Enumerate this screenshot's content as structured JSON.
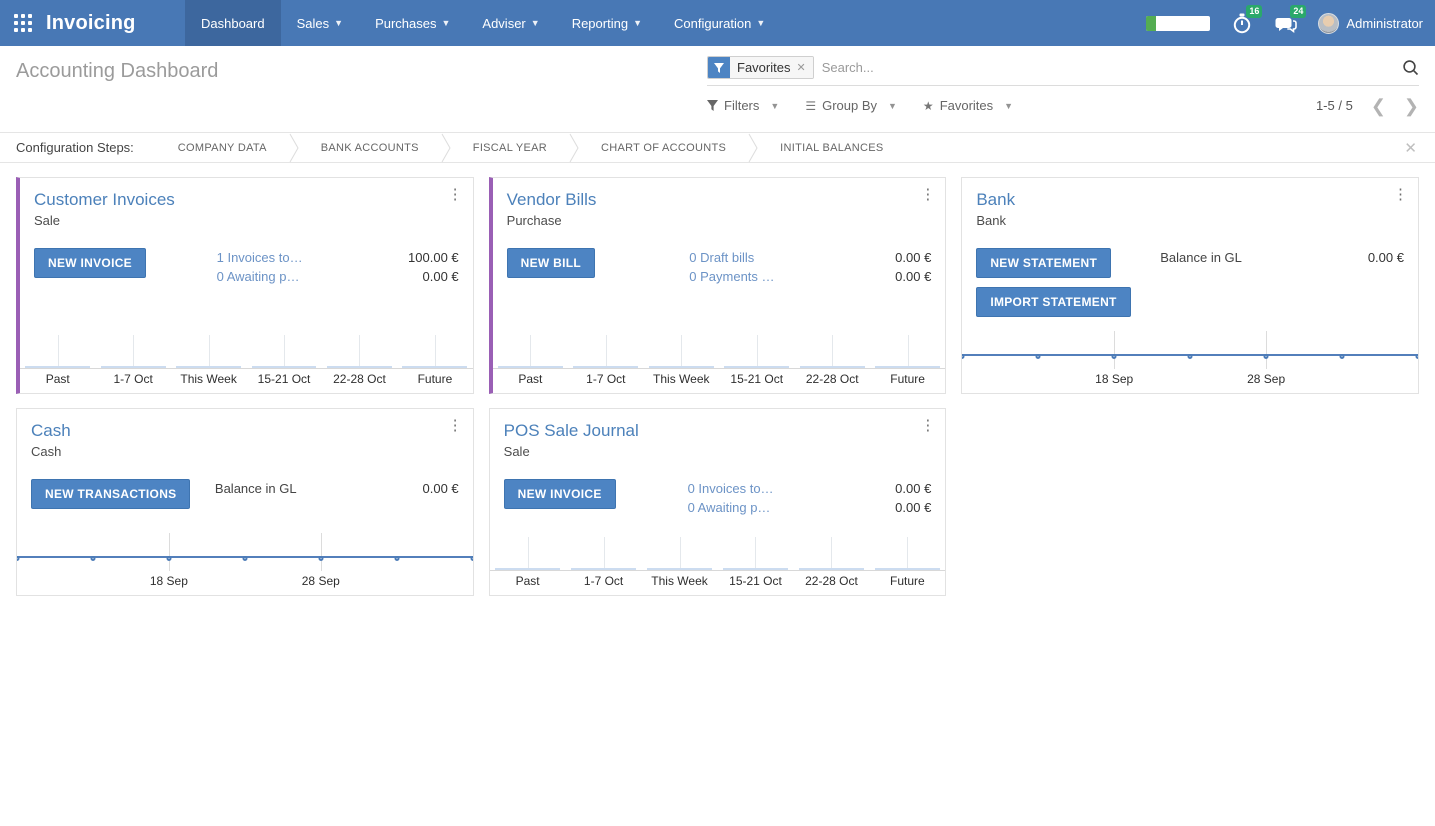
{
  "nav": {
    "app_name": "Invoicing",
    "menus": [
      {
        "label": "Dashboard",
        "active": true,
        "caret": false
      },
      {
        "label": "Sales",
        "active": false,
        "caret": true
      },
      {
        "label": "Purchases",
        "active": false,
        "caret": true
      },
      {
        "label": "Adviser",
        "active": false,
        "caret": true
      },
      {
        "label": "Reporting",
        "active": false,
        "caret": true
      },
      {
        "label": "Configuration",
        "active": false,
        "caret": true
      }
    ],
    "activity_badge": "16",
    "messages_badge": "24",
    "user_name": "Administrator"
  },
  "control_panel": {
    "title": "Accounting Dashboard",
    "search": {
      "facet_label": "Favorites",
      "placeholder": "Search..."
    },
    "filters_label": "Filters",
    "group_by_label": "Group By",
    "favorites_label": "Favorites",
    "pager_text": "1-5 / 5"
  },
  "config_steps": {
    "label": "Configuration Steps:",
    "steps": [
      "COMPANY DATA",
      "BANK ACCOUNTS",
      "FISCAL YEAR",
      "CHART OF ACCOUNTS",
      "INITIAL BALANCES"
    ]
  },
  "cards": [
    {
      "title": "Customer Invoices",
      "subtitle": "Sale",
      "accent": true,
      "buttons": [
        "NEW INVOICE"
      ],
      "rows": [
        {
          "label": "1 Invoices to…",
          "link": true,
          "amount": "100.00 €"
        },
        {
          "label": "0 Awaiting p…",
          "link": true,
          "amount": "0.00 €"
        }
      ],
      "chart": {
        "type": "bar",
        "categories": [
          "Past",
          "1-7 Oct",
          "This Week",
          "15-21 Oct",
          "22-28 Oct",
          "Future"
        ],
        "values": [
          0,
          0,
          0,
          0,
          0,
          0
        ]
      }
    },
    {
      "title": "Vendor Bills",
      "subtitle": "Purchase",
      "accent": true,
      "buttons": [
        "NEW BILL"
      ],
      "rows": [
        {
          "label": "0 Draft bills",
          "link": true,
          "amount": "0.00 €"
        },
        {
          "label": "0 Payments …",
          "link": true,
          "amount": "0.00 €"
        }
      ],
      "chart": {
        "type": "bar",
        "categories": [
          "Past",
          "1-7 Oct",
          "This Week",
          "15-21 Oct",
          "22-28 Oct",
          "Future"
        ],
        "values": [
          0,
          0,
          0,
          0,
          0,
          0
        ]
      }
    },
    {
      "title": "Bank",
      "subtitle": "Bank",
      "accent": false,
      "buttons": [
        "NEW STATEMENT",
        "IMPORT STATEMENT"
      ],
      "rows": [
        {
          "label": "Balance in GL",
          "link": false,
          "amount": "0.00 €"
        }
      ],
      "chart": {
        "type": "line",
        "x_ticks": [
          "18 Sep",
          "28 Sep"
        ],
        "tick_positions": [
          33.33,
          66.67
        ],
        "num_points": 7,
        "values": [
          0,
          0,
          0,
          0,
          0,
          0,
          0
        ]
      }
    },
    {
      "title": "Cash",
      "subtitle": "Cash",
      "accent": false,
      "buttons": [
        "NEW TRANSACTIONS"
      ],
      "rows": [
        {
          "label": "Balance in GL",
          "link": false,
          "amount": "0.00 €"
        }
      ],
      "chart": {
        "type": "line",
        "x_ticks": [
          "18 Sep",
          "28 Sep"
        ],
        "tick_positions": [
          33.33,
          66.67
        ],
        "num_points": 7,
        "values": [
          0,
          0,
          0,
          0,
          0,
          0,
          0
        ]
      }
    },
    {
      "title": "POS Sale Journal",
      "subtitle": "Sale",
      "accent": false,
      "buttons": [
        "NEW INVOICE"
      ],
      "rows": [
        {
          "label": "0 Invoices to…",
          "link": true,
          "amount": "0.00 €"
        },
        {
          "label": "0 Awaiting p…",
          "link": true,
          "amount": "0.00 €"
        }
      ],
      "chart": {
        "type": "bar",
        "categories": [
          "Past",
          "1-7 Oct",
          "This Week",
          "15-21 Oct",
          "22-28 Oct",
          "Future"
        ],
        "values": [
          0,
          0,
          0,
          0,
          0,
          0
        ]
      }
    }
  ]
}
